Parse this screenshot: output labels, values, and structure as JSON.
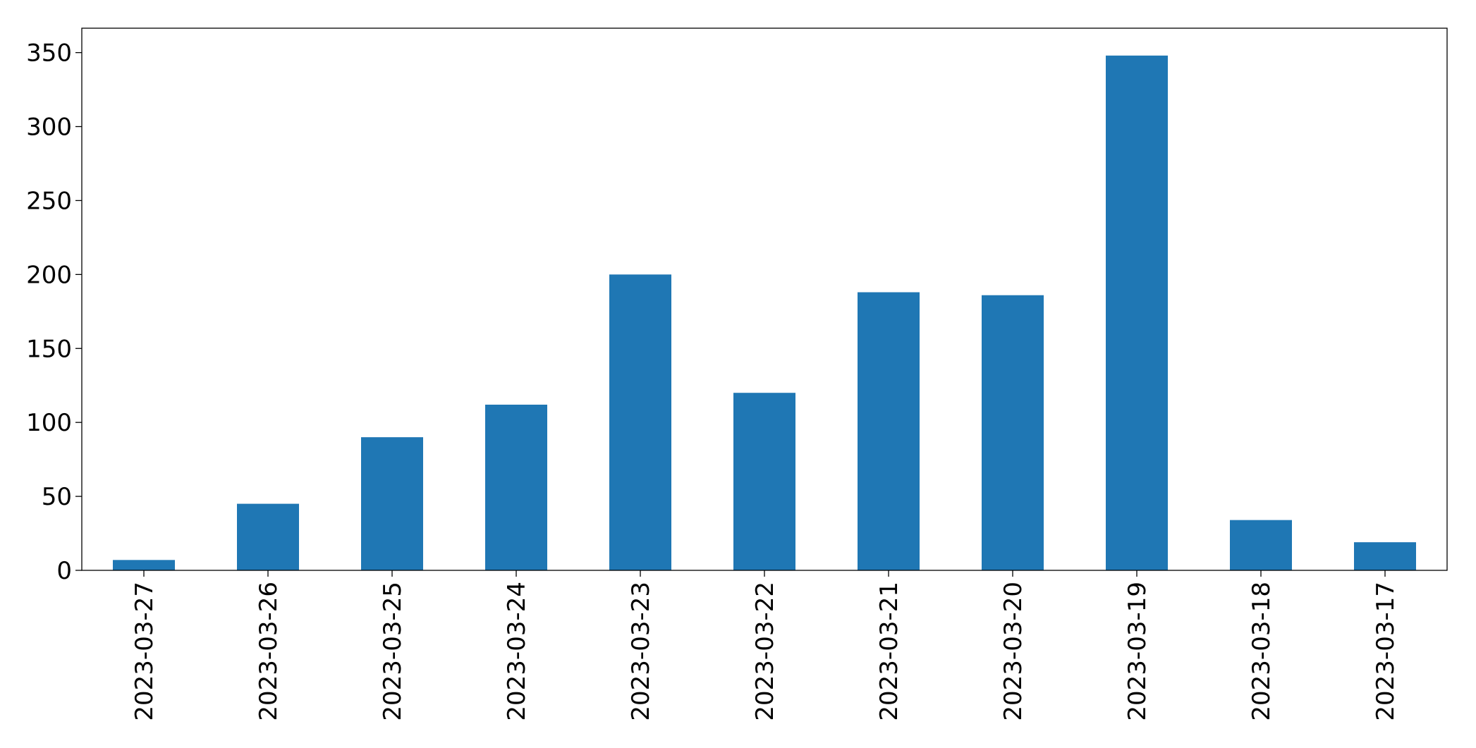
{
  "chart_data": {
    "type": "bar",
    "categories": [
      "2023-03-27",
      "2023-03-26",
      "2023-03-25",
      "2023-03-24",
      "2023-03-23",
      "2023-03-22",
      "2023-03-21",
      "2023-03-20",
      "2023-03-19",
      "2023-03-18",
      "2023-03-17"
    ],
    "values": [
      7,
      45,
      90,
      112,
      200,
      120,
      188,
      186,
      348,
      34,
      19
    ],
    "color": "#1f77b4",
    "ylim": [
      0,
      366.5
    ],
    "yticks": [
      0,
      50,
      100,
      150,
      200,
      250,
      300,
      350
    ],
    "grid": false
  }
}
